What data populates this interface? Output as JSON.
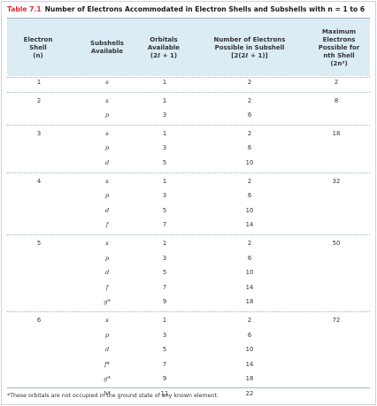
{
  "table": {
    "label": "Table 7.1",
    "title": "Number of Electrons Accommodated in Electron Shells and Subshells with n = 1 to 6",
    "headers": [
      "Electron\nShell\n(n)",
      "Subshells\nAvailable",
      "Orbitals\nAvailable\n(2ℓ + 1)",
      "Number of Electrons\nPossible in Subshell\n[2(2ℓ + 1)]",
      "Maximum\nElectrons\nPossible for\nnth Shell\n(2n²)"
    ],
    "rows": [
      {
        "shell": "1",
        "subshell": "s",
        "orbitals": "1",
        "electrons": "2",
        "max": "2"
      },
      {
        "shell": "2",
        "subshell": "s",
        "orbitals": "1",
        "electrons": "2",
        "max": "8"
      },
      {
        "shell": "",
        "subshell": "p",
        "orbitals": "3",
        "electrons": "6",
        "max": ""
      },
      {
        "shell": "3",
        "subshell": "s",
        "orbitals": "1",
        "electrons": "2",
        "max": "18"
      },
      {
        "shell": "",
        "subshell": "p",
        "orbitals": "3",
        "electrons": "6",
        "max": ""
      },
      {
        "shell": "",
        "subshell": "d",
        "orbitals": "5",
        "electrons": "10",
        "max": ""
      },
      {
        "shell": "4",
        "subshell": "s",
        "orbitals": "1",
        "electrons": "2",
        "max": "32"
      },
      {
        "shell": "",
        "subshell": "p",
        "orbitals": "3",
        "electrons": "6",
        "max": ""
      },
      {
        "shell": "",
        "subshell": "d",
        "orbitals": "5",
        "electrons": "10",
        "max": ""
      },
      {
        "shell": "",
        "subshell": "f",
        "orbitals": "7",
        "electrons": "14",
        "max": ""
      },
      {
        "shell": "5",
        "subshell": "s",
        "orbitals": "1",
        "electrons": "2",
        "max": "50"
      },
      {
        "shell": "",
        "subshell": "p",
        "orbitals": "3",
        "electrons": "6",
        "max": ""
      },
      {
        "shell": "",
        "subshell": "d",
        "orbitals": "5",
        "electrons": "10",
        "max": ""
      },
      {
        "shell": "",
        "subshell": "f",
        "orbitals": "7",
        "electrons": "14",
        "max": ""
      },
      {
        "shell": "",
        "subshell": "g*",
        "orbitals": "9",
        "electrons": "18",
        "max": ""
      },
      {
        "shell": "6",
        "subshell": "s",
        "orbitals": "1",
        "electrons": "2",
        "max": "72"
      },
      {
        "shell": "",
        "subshell": "p",
        "orbitals": "3",
        "electrons": "6",
        "max": ""
      },
      {
        "shell": "",
        "subshell": "d",
        "orbitals": "5",
        "electrons": "10",
        "max": ""
      },
      {
        "shell": "",
        "subshell": "f*",
        "orbitals": "7",
        "electrons": "14",
        "max": ""
      },
      {
        "shell": "",
        "subshell": "g*",
        "orbitals": "9",
        "electrons": "18",
        "max": ""
      },
      {
        "shell": "",
        "subshell": "h*",
        "orbitals": "11",
        "electrons": "22",
        "max": ""
      }
    ],
    "footnote": "*These orbitals are not occupied in the ground state of any known element.",
    "colors": {
      "label": "#d2333d",
      "header_bg": "#dcecf5",
      "rule": "#9fb7c6",
      "separator": "#9ab3c3"
    }
  }
}
